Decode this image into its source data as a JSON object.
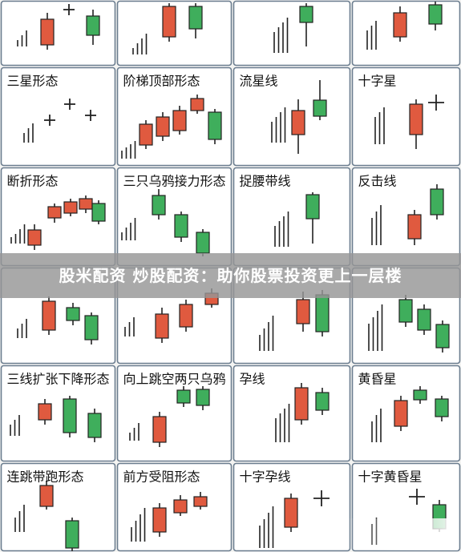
{
  "banner": {
    "text": "股米配资 炒股配资：助你股票投资更上一层楼"
  },
  "colors": {
    "up": "#e05a3f",
    "down": "#3fae5c",
    "stroke": "#222222",
    "grid": "#6b7d8f",
    "cell": "#ffffff"
  },
  "patterns": [
    {
      "id": "r0c0",
      "name": ""
    },
    {
      "id": "r0c1",
      "name": ""
    },
    {
      "id": "r0c2",
      "name": ""
    },
    {
      "id": "r0c3",
      "name": ""
    },
    {
      "id": "r1c0",
      "name": "三星形态"
    },
    {
      "id": "r1c1",
      "name": "阶梯顶部形态"
    },
    {
      "id": "r1c2",
      "name": "流星线"
    },
    {
      "id": "r1c3",
      "name": "十字星"
    },
    {
      "id": "r2c0",
      "name": "断折形态"
    },
    {
      "id": "r2c1",
      "name": "三只乌鸦接力形态"
    },
    {
      "id": "r2c2",
      "name": "捉腰带线"
    },
    {
      "id": "r2c3",
      "name": "反击线"
    },
    {
      "id": "r3c0",
      "name": ""
    },
    {
      "id": "r3c1",
      "name": ""
    },
    {
      "id": "r3c2",
      "name": ""
    },
    {
      "id": "r3c3",
      "name": ""
    },
    {
      "id": "r4c0",
      "name": "三线扩张下降形态"
    },
    {
      "id": "r4c1",
      "name": "向上跳空两只乌鸦"
    },
    {
      "id": "r4c2",
      "name": "孕线"
    },
    {
      "id": "r4c3",
      "name": "黄昏星"
    },
    {
      "id": "r5c0",
      "name": "连跳带跑形态"
    },
    {
      "id": "r5c1",
      "name": "前方受阻形态"
    },
    {
      "id": "r5c2",
      "name": "十字孕线"
    },
    {
      "id": "r5c3",
      "name": "十字黄昏星"
    }
  ]
}
